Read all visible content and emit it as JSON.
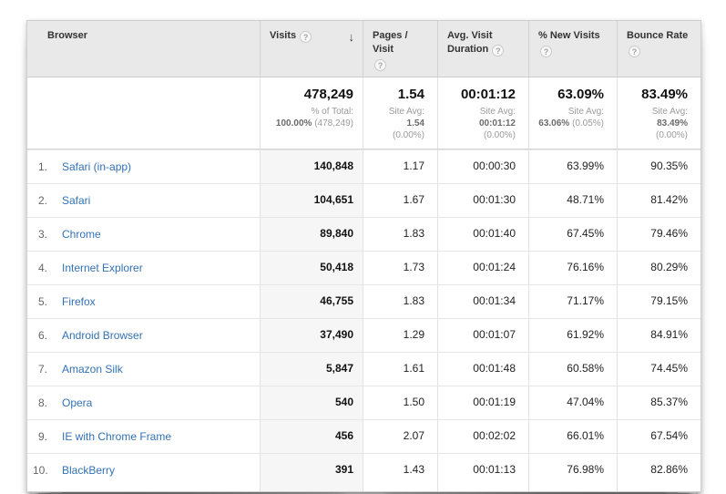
{
  "icons": {
    "help": "?",
    "sort_desc": "↓"
  },
  "colors": {
    "header_bg": "#e9e9e9",
    "link_blue": "#3272b5",
    "sorted_column_highlight": "#f6f6f6",
    "summary_gray_text": "#9b9b9b"
  },
  "table": {
    "columns": [
      {
        "label": "Browser",
        "help": false,
        "sortable": true
      },
      {
        "label": "Visits",
        "help": true,
        "sortable": true,
        "sorted": "desc"
      },
      {
        "label": "Pages / Visit",
        "help": true,
        "sortable": true
      },
      {
        "label": "Avg. Visit Duration",
        "help": true,
        "sortable": true
      },
      {
        "label": "% New Visits",
        "help": true,
        "sortable": true
      },
      {
        "label": "Bounce Rate",
        "help": true,
        "sortable": true
      }
    ],
    "summary": {
      "visits": {
        "value": "478,249",
        "label": "% of Total:",
        "avg": "100.00%",
        "pct": "(478,249)"
      },
      "pages": {
        "value": "1.54",
        "label": "Site Avg:",
        "avg": "1.54",
        "pct": "(0.00%)"
      },
      "duration": {
        "value": "00:01:12",
        "label": "Site Avg:",
        "avg": "00:01:12",
        "pct": "(0.00%)"
      },
      "new_visits": {
        "value": "63.09%",
        "label": "Site Avg:",
        "avg": "63.06%",
        "pct": "(0.05%)"
      },
      "bounce": {
        "value": "83.49%",
        "label": "Site Avg:",
        "avg": "83.49%",
        "pct": "(0.00%)"
      }
    },
    "rows": [
      {
        "rank": "1.",
        "browser": "Safari (in-app)",
        "visits": "140,848",
        "pages": "1.17",
        "duration": "00:00:30",
        "new_visits": "63.99%",
        "bounce": "90.35%"
      },
      {
        "rank": "2.",
        "browser": "Safari",
        "visits": "104,651",
        "pages": "1.67",
        "duration": "00:01:30",
        "new_visits": "48.71%",
        "bounce": "81.42%"
      },
      {
        "rank": "3.",
        "browser": "Chrome",
        "visits": "89,840",
        "pages": "1.83",
        "duration": "00:01:40",
        "new_visits": "67.45%",
        "bounce": "79.46%"
      },
      {
        "rank": "4.",
        "browser": "Internet Explorer",
        "visits": "50,418",
        "pages": "1.73",
        "duration": "00:01:24",
        "new_visits": "76.16%",
        "bounce": "80.29%"
      },
      {
        "rank": "5.",
        "browser": "Firefox",
        "visits": "46,755",
        "pages": "1.83",
        "duration": "00:01:34",
        "new_visits": "71.17%",
        "bounce": "79.15%"
      },
      {
        "rank": "6.",
        "browser": "Android Browser",
        "visits": "37,490",
        "pages": "1.29",
        "duration": "00:01:07",
        "new_visits": "61.92%",
        "bounce": "84.91%"
      },
      {
        "rank": "7.",
        "browser": "Amazon Silk",
        "visits": "5,847",
        "pages": "1.61",
        "duration": "00:01:48",
        "new_visits": "60.58%",
        "bounce": "74.45%"
      },
      {
        "rank": "8.",
        "browser": "Opera",
        "visits": "540",
        "pages": "1.50",
        "duration": "00:01:19",
        "new_visits": "47.04%",
        "bounce": "85.37%"
      },
      {
        "rank": "9.",
        "browser": "IE with Chrome Frame",
        "visits": "456",
        "pages": "2.07",
        "duration": "00:02:02",
        "new_visits": "66.01%",
        "bounce": "67.54%"
      },
      {
        "rank": "10.",
        "browser": "BlackBerry",
        "visits": "391",
        "pages": "1.43",
        "duration": "00:01:13",
        "new_visits": "76.98%",
        "bounce": "82.86%"
      }
    ]
  }
}
